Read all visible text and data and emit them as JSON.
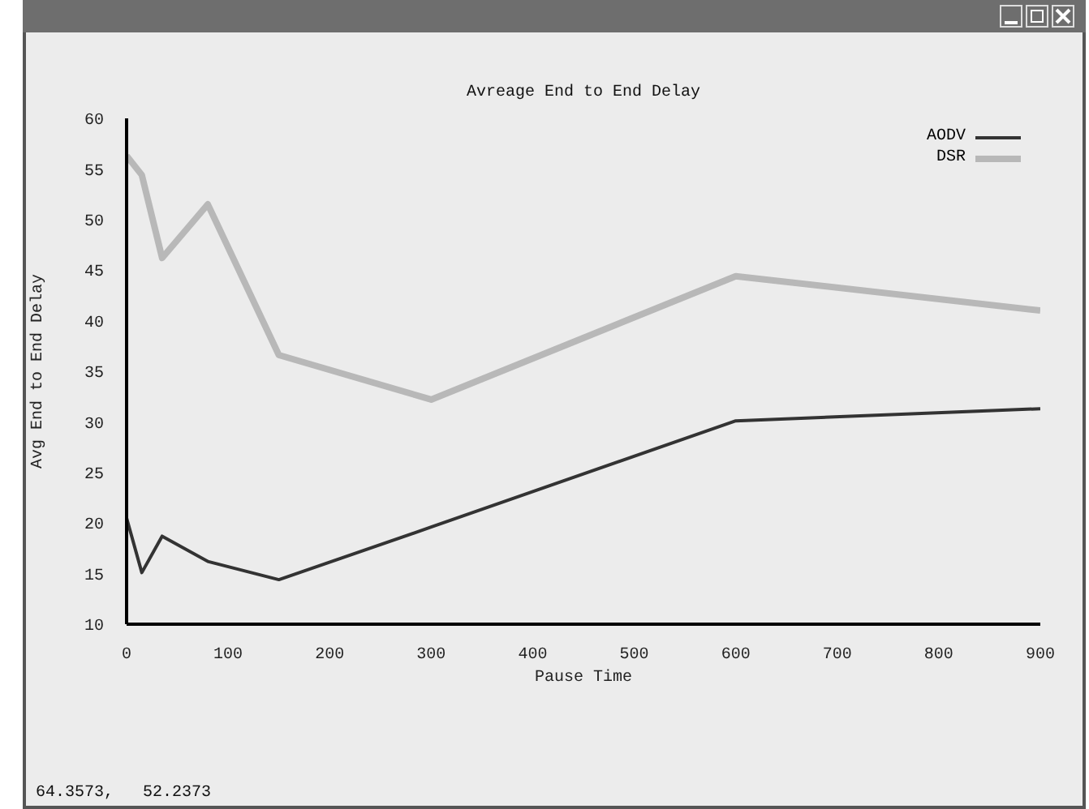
{
  "chart_data": {
    "type": "line",
    "title": "Avreage End to End Delay",
    "xlabel": "Pause Time",
    "ylabel": "Avg End to End Delay",
    "x": [
      0,
      15,
      35,
      80,
      150,
      300,
      600,
      900
    ],
    "series": [
      {
        "name": "AODV",
        "color": "#333333",
        "values": [
          20.5,
          15.1,
          18.7,
          16.2,
          14.4,
          19.6,
          30.1,
          31.3
        ]
      },
      {
        "name": "DSR",
        "color": "#b8b8b8",
        "values": [
          56.3,
          54.4,
          46.2,
          51.5,
          36.6,
          32.2,
          44.4,
          41.0
        ]
      }
    ],
    "xlim": [
      0,
      900
    ],
    "xticks": [
      0,
      100,
      200,
      300,
      400,
      500,
      600,
      700,
      800,
      900
    ],
    "ylim": [
      10,
      60
    ],
    "yticks": [
      10,
      15,
      20,
      25,
      30,
      35,
      40,
      45,
      50,
      55,
      60
    ],
    "legend": "top right",
    "annotations": [
      "64.3573,   52.2373"
    ]
  }
}
